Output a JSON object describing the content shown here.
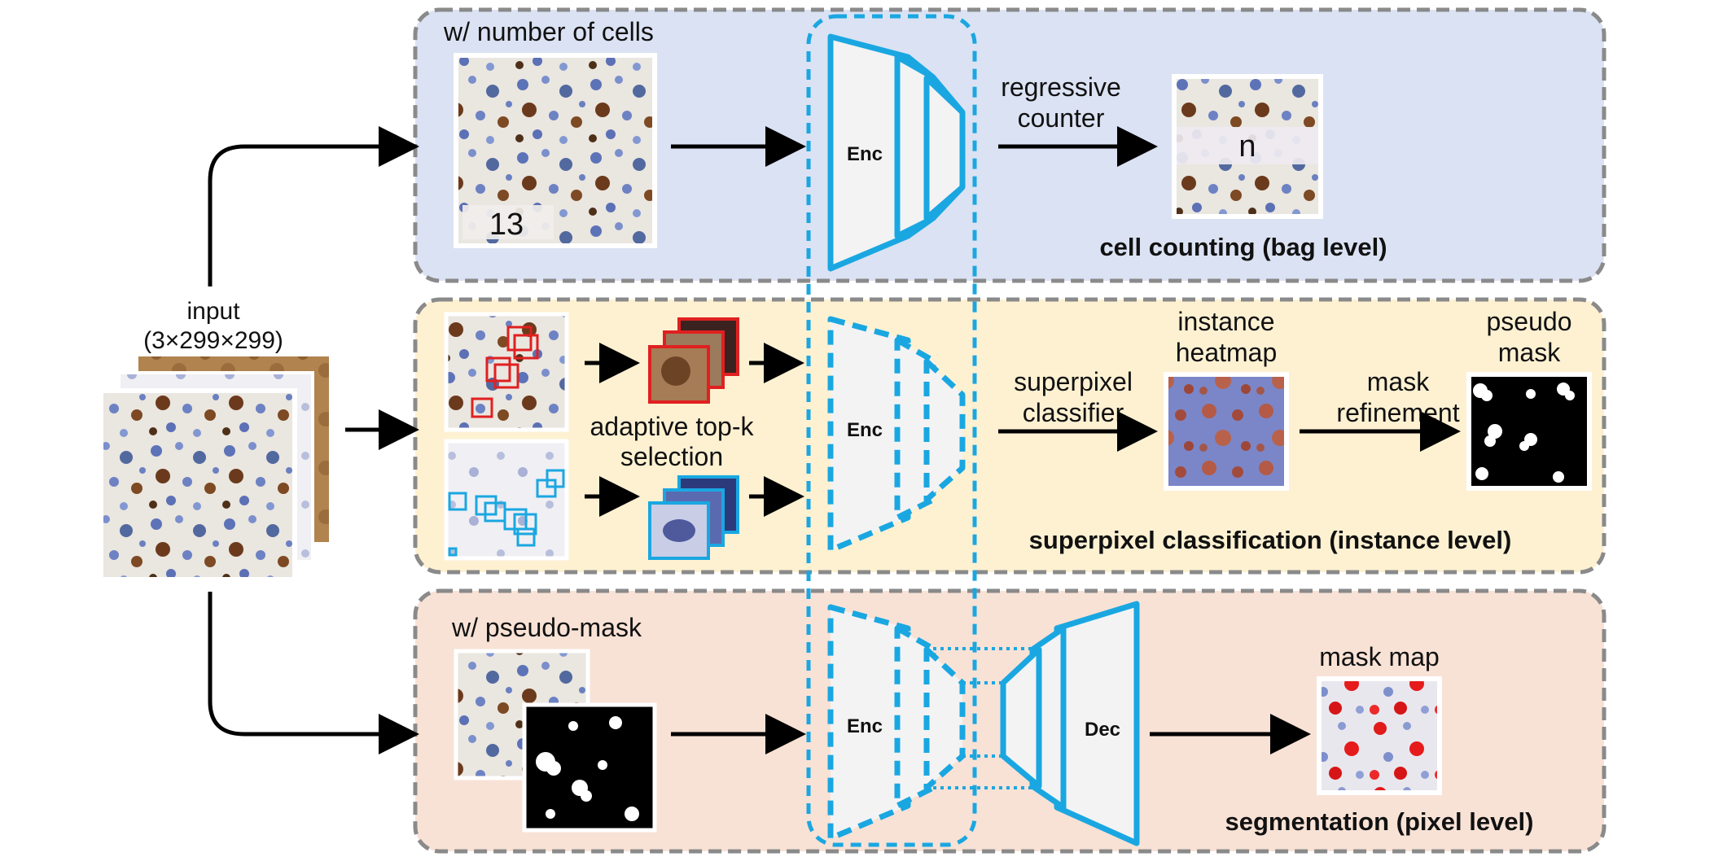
{
  "input": {
    "label": "input",
    "dims": "(3×299×299)"
  },
  "bag": {
    "condition": "w/ number of cells",
    "count_value": "13",
    "head_line1": "regressive",
    "head_line2": "counter",
    "output_value": "n",
    "caption": "cell counting (bag level)"
  },
  "instance": {
    "selection_line1": "adaptive top-k",
    "selection_line2": "selection",
    "classifier_line1": "superpixel",
    "classifier_line2": "classifier",
    "heatmap_line1": "instance",
    "heatmap_line2": "heatmap",
    "refine_line1": "mask",
    "refine_line2": "refinement",
    "pseudo_line1": "pseudo",
    "pseudo_line2": "mask",
    "caption": "superpixel classification (instance level)"
  },
  "pixel": {
    "condition": "w/ pseudo-mask",
    "output_label": "mask map",
    "caption": "segmentation (pixel level)"
  },
  "encoder_label": "Enc",
  "decoder_label": "Dec",
  "colors": {
    "network_blue": "#1aa7e1",
    "panel_bag": "#dbe2f3",
    "panel_instance": "#fdf1d2",
    "panel_pixel": "#f8e2d6",
    "panel_border": "#8a8a8a",
    "positive_box": "#e02020",
    "negative_box": "#1aa7e1"
  }
}
